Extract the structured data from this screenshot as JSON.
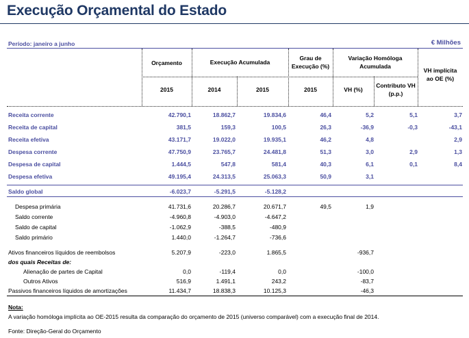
{
  "title": "Execução Orçamental do Estado",
  "period": "Período: janeiro a junho",
  "unit": "€ Milhões",
  "headers": {
    "orcamento": "Orçamento",
    "execucao": "Execução Acumulada",
    "grau_1": "Grau de",
    "grau_2": "Execução (%)",
    "variacao_1": "Variação Homóloga",
    "variacao_2": "Acumulada",
    "vh_impl_1": "VH implícita",
    "vh_impl_2": "ao OE (%)",
    "vh": "VH (%)",
    "contrib_1": "Contributo VH",
    "contrib_2": "(p.p.)",
    "y_orc": "2015",
    "y_2014": "2014",
    "y_2015": "2015",
    "y_grau": "2015"
  },
  "rows": [
    {
      "label": "Receita corrente",
      "orc": "42.790,1",
      "e14": "18.862,7",
      "e15": "19.834,6",
      "grau": "46,4",
      "vh": "5,2",
      "contrib": "5,1",
      "vhi": "3,7"
    },
    {
      "label": "Receita de capital",
      "orc": "381,5",
      "e14": "159,3",
      "e15": "100,5",
      "grau": "26,3",
      "vh": "-36,9",
      "contrib": "-0,3",
      "vhi": "-43,1"
    },
    {
      "label": "Receita efetiva",
      "orc": "43.171,7",
      "e14": "19.022,0",
      "e15": "19.935,1",
      "grau": "46,2",
      "vh": "4,8",
      "contrib": "",
      "vhi": "2,9"
    },
    {
      "label": "Despesa corrente",
      "orc": "47.750,9",
      "e14": "23.765,7",
      "e15": "24.481,8",
      "grau": "51,3",
      "vh": "3,0",
      "contrib": "2,9",
      "vhi": "1,3"
    },
    {
      "label": "Despesa de capital",
      "orc": "1.444,5",
      "e14": "547,8",
      "e15": "581,4",
      "grau": "40,3",
      "vh": "6,1",
      "contrib": "0,1",
      "vhi": "8,4"
    },
    {
      "label": "Despesa efetiva",
      "orc": "49.195,4",
      "e14": "24.313,5",
      "e15": "25.063,3",
      "grau": "50,9",
      "vh": "3,1",
      "contrib": "",
      "vhi": ""
    },
    {
      "label": "Saldo global",
      "orc": "-6.023,7",
      "e14": "-5.291,5",
      "e15": "-5.128,2",
      "grau": "",
      "vh": "",
      "contrib": "",
      "vhi": ""
    },
    {
      "label": "Despesa  primária",
      "orc": "41.731,6",
      "e14": "20.286,7",
      "e15": "20.671,7",
      "grau": "49,5",
      "vh": "1,9",
      "contrib": "",
      "vhi": ""
    },
    {
      "label": "Saldo corrente",
      "orc": "-4.960,8",
      "e14": "-4.903,0",
      "e15": "-4.647,2",
      "grau": "",
      "vh": "",
      "contrib": "",
      "vhi": ""
    },
    {
      "label": "Saldo de capital",
      "orc": "-1.062,9",
      "e14": "-388,5",
      "e15": "-480,9",
      "grau": "",
      "vh": "",
      "contrib": "",
      "vhi": ""
    },
    {
      "label": "Saldo primário",
      "orc": "1.440,0",
      "e14": "-1.264,7",
      "e15": "-736,6",
      "grau": "",
      "vh": "",
      "contrib": "",
      "vhi": ""
    },
    {
      "label": "Ativos financeiros líquidos de reembolsos",
      "orc": "5.207,9",
      "e14": "-223,0",
      "e15": "1.865,5",
      "grau": "",
      "vh": "-936,7",
      "contrib": "",
      "vhi": ""
    },
    {
      "label": "dos quais Receitas de:",
      "orc": "",
      "e14": "",
      "e15": "",
      "grau": "",
      "vh": "",
      "contrib": "",
      "vhi": ""
    },
    {
      "label": "Alienação de partes de Capital",
      "orc": "0,0",
      "e14": "-119,4",
      "e15": "0,0",
      "grau": "",
      "vh": "-100,0",
      "contrib": "",
      "vhi": ""
    },
    {
      "label": "Outros Ativos",
      "orc": "516,9",
      "e14": "1.491,1",
      "e15": "243,2",
      "grau": "",
      "vh": "-83,7",
      "contrib": "",
      "vhi": ""
    },
    {
      "label": "Passivos financeiros líquidos de amortizações",
      "orc": "11.434,7",
      "e14": "18.838,3",
      "e15": "10.125,3",
      "grau": "",
      "vh": "-46,3",
      "contrib": "",
      "vhi": ""
    }
  ],
  "note_title": "Nota:",
  "note_text": "A variação homóloga implícita ao OE-2015 resulta da comparação do orçamento de 2015 (universo comparável) com a execução final de 2014.",
  "source": "Fonte: Direção-Geral do Orçamento"
}
